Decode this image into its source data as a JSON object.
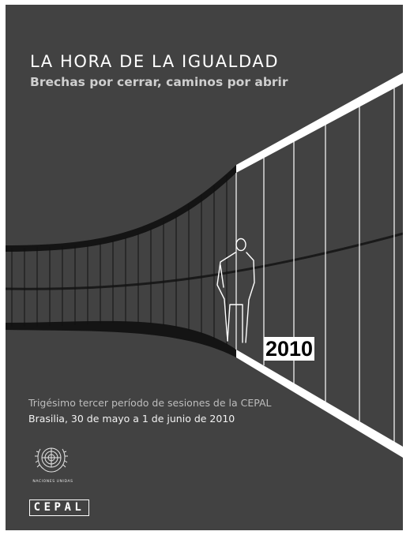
{
  "cover": {
    "title": "LA HORA DE LA IGUALDAD",
    "subtitle": "Brechas por cerrar, caminos por abrir",
    "year": "2010",
    "session": "Trigésimo tercer período de sesiones de la CEPAL",
    "venue": "Brasilia, 30 de mayo a 1 de junio de 2010",
    "un_name": "Naciones Unidas",
    "cepal_logo": "CEPAL"
  },
  "colors": {
    "background": "#424242",
    "foreground": "#ffffff"
  }
}
